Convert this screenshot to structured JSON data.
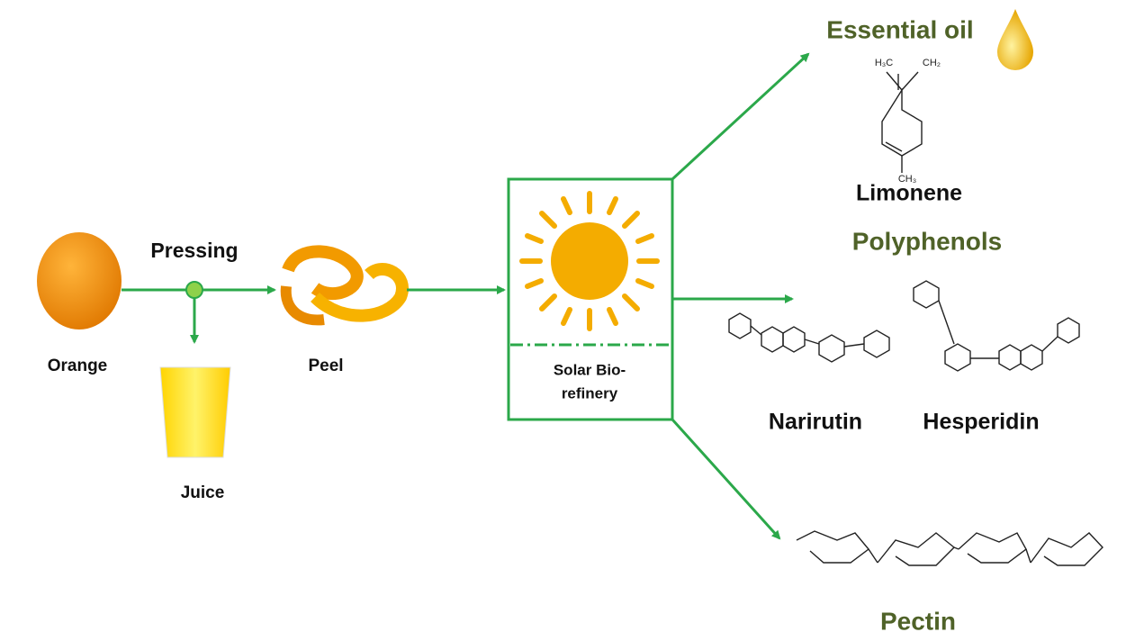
{
  "process": {
    "orange": "Orange",
    "pressing": "Pressing",
    "juice": "Juice",
    "peel": "Peel",
    "biorefinery": [
      "Solar Bio-",
      "refinery"
    ]
  },
  "products": {
    "essential_oil": {
      "title": "Essential oil",
      "compound": "Limonene",
      "atoms": [
        "H₃C",
        "CH₂",
        "CH₃"
      ]
    },
    "polyphenols": {
      "title": "Polyphenols",
      "compounds": [
        "Narirutin",
        "Hesperidin"
      ]
    },
    "pectin": {
      "title": "Pectin"
    }
  }
}
